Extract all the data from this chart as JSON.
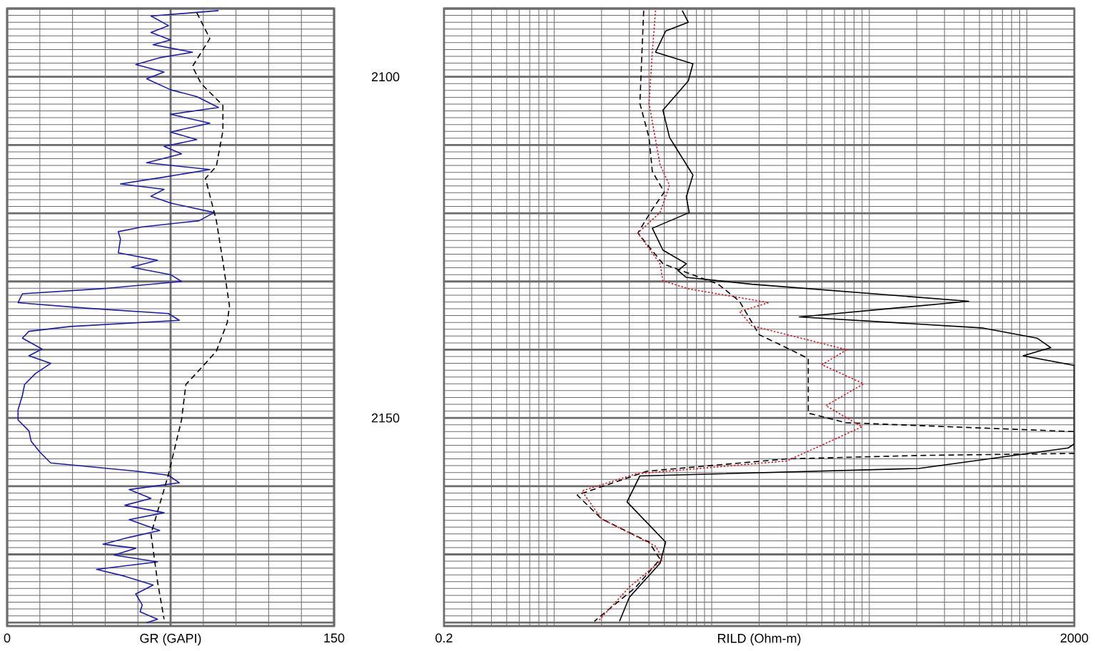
{
  "chart_data": [
    {
      "type": "line",
      "xlabel": "GR (GAPI)",
      "xlim": [
        0,
        150
      ],
      "xticks": [
        0,
        {
          "value": 75,
          "label": null
        },
        150
      ],
      "ylim": [
        2180.5,
        2090
      ],
      "yticks": [
        {
          "value": 2090,
          "label": null
        },
        2100,
        {
          "value": 2110,
          "label": null
        },
        {
          "value": 2120,
          "label": null
        },
        {
          "value": 2130,
          "label": null
        },
        {
          "value": 2140,
          "label": null
        },
        2150,
        {
          "value": 2160,
          "label": null
        },
        {
          "value": 2170,
          "label": null
        },
        {
          "value": 2180,
          "label": null
        }
      ],
      "grid": true,
      "series": [
        {
          "color": "#1c1cb4",
          "x": [
            97,
            66,
            74,
            66,
            75,
            67,
            85,
            70,
            59,
            72,
            64,
            75,
            87,
            97,
            75,
            93,
            75,
            87,
            72,
            80,
            64,
            93,
            72,
            52,
            72,
            66,
            75,
            95,
            88,
            62,
            51,
            52,
            51,
            69,
            57,
            75,
            80,
            46,
            7,
            5,
            36,
            74,
            79,
            29,
            10,
            7,
            16,
            10,
            20,
            13,
            8,
            7,
            5,
            5,
            10,
            11,
            15,
            20,
            59,
            74,
            79,
            56,
            66,
            54,
            72,
            56,
            70,
            56,
            44,
            59,
            49,
            69,
            41,
            54,
            67,
            59,
            62,
            61,
            69,
            64
          ],
          "values": [
            2090.3,
            2091.1,
            2092.5,
            2093.5,
            2094.6,
            2095.3,
            2096.4,
            2097.2,
            2098.2,
            2099.3,
            2100.3,
            2101.9,
            2102.9,
            2104.5,
            2105.5,
            2106.8,
            2108.1,
            2109.2,
            2110.2,
            2111.3,
            2112.6,
            2113.6,
            2114.7,
            2115.7,
            2116.5,
            2117.5,
            2118.5,
            2119.9,
            2121.1,
            2122.0,
            2122.7,
            2123.8,
            2125.8,
            2126.9,
            2127.9,
            2129.0,
            2130.0,
            2131.0,
            2131.8,
            2133.1,
            2133.9,
            2134.7,
            2135.7,
            2136.6,
            2137.3,
            2138.3,
            2139.9,
            2140.9,
            2142.0,
            2143.5,
            2145.1,
            2146.7,
            2148.8,
            2150.3,
            2151.9,
            2153.4,
            2155.0,
            2156.6,
            2157.8,
            2158.4,
            2159.5,
            2160.5,
            2161.8,
            2162.8,
            2163.9,
            2164.9,
            2166.5,
            2167.5,
            2168.5,
            2169.1,
            2170.1,
            2171.1,
            2172.2,
            2173.2,
            2174.5,
            2175.8,
            2177.4,
            2178.4,
            2179.5,
            2180.0
          ]
        },
        {
          "color": "#000000",
          "line_style": "dashed",
          "x": [
            87,
            93,
            85,
            89,
            99,
            99,
            96,
            91,
            96,
            99,
            102,
            101,
            96,
            89,
            82,
            80,
            74,
            66,
            69,
            72
          ],
          "values": [
            2090.6,
            2094.4,
            2098.5,
            2101.0,
            2104.2,
            2107.9,
            2113.1,
            2114.9,
            2121.1,
            2127.1,
            2133.6,
            2136.0,
            2140.2,
            2142.7,
            2145.1,
            2150.3,
            2158.3,
            2167.0,
            2174.0,
            2179.5
          ]
        }
      ]
    },
    {
      "type": "line",
      "xlabel": "RILD (Ohm-m)",
      "log": "x",
      "xlim": [
        0.2,
        2000
      ],
      "xticks": [
        0.2,
        {
          "value": 2,
          "label": null
        },
        {
          "value": 20,
          "label": null
        },
        {
          "value": 200,
          "label": null
        },
        2000
      ],
      "ylim": [
        2180.5,
        2090
      ],
      "yticks": [
        {
          "value": 2090,
          "label": null
        },
        {
          "value": 2100,
          "label": null
        },
        {
          "value": 2110,
          "label": null
        },
        {
          "value": 2120,
          "label": null
        },
        {
          "value": 2130,
          "label": null
        },
        {
          "value": 2140,
          "label": null
        },
        {
          "value": 2150,
          "label": null
        },
        {
          "value": 2160,
          "label": null
        },
        {
          "value": 2170,
          "label": null
        },
        {
          "value": 2180,
          "label": null
        }
      ],
      "tick_labels": "x",
      "grid": true,
      "series": [
        {
          "color": "#000000",
          "x": [
            6.5,
            7.1,
            5.1,
            4.4,
            7.6,
            7.1,
            4.9,
            5.4,
            7.6,
            6.9,
            7.2,
            4.2,
            4.9,
            6.9,
            6.1,
            6.9,
            18,
            427,
            36,
            517,
            1159,
            1419,
            946,
            2000,
            2000,
            1828,
            206,
            3.5,
            2.9,
            5.1,
            4.7,
            3.0,
            2.6
          ],
          "values": [
            2090.3,
            2092.0,
            2093.3,
            2096.4,
            2098.1,
            2100.6,
            2104.9,
            2108.9,
            2114.4,
            2117.6,
            2119.9,
            2122.2,
            2125.4,
            2127.4,
            2128.4,
            2129.4,
            2130.4,
            2132.9,
            2135.2,
            2136.8,
            2138.3,
            2139.7,
            2140.9,
            2142.3,
            2153.8,
            2154.4,
            2157.4,
            2158.5,
            2162.3,
            2168.2,
            2171.3,
            2176.3,
            2179.8
          ]
        },
        {
          "color": "#000000",
          "line_style": "dashed",
          "x": [
            3.7,
            3.5,
            4.0,
            4.2,
            5.0,
            4.2,
            3.4,
            4.9,
            11,
            15,
            20,
            31,
            41,
            41,
            71,
            2000,
            2000,
            206,
            30,
            3.9,
            1.4,
            2.0,
            4.0,
            4.7,
            3.3,
            1.8
          ],
          "values": [
            2090.3,
            2103.9,
            2108.9,
            2113.9,
            2116.9,
            2119.4,
            2122.9,
            2127.4,
            2130.4,
            2132.9,
            2137.8,
            2139.9,
            2141.3,
            2149.3,
            2150.7,
            2152.0,
            2155.2,
            2155.5,
            2156.0,
            2157.8,
            2161.3,
            2164.8,
            2168.2,
            2170.7,
            2174.8,
            2179.8
          ]
        },
        {
          "color": "#e0141e",
          "line_style": "dotted",
          "x": [
            4.4,
            4.2,
            4.0,
            4.7,
            5.4,
            4.7,
            3.4,
            4.7,
            4.9,
            7.2,
            23,
            15,
            18,
            72,
            50,
            92,
            53,
            90,
            30,
            3.3,
            1.5,
            2.0,
            4.4,
            4.9,
            3.0,
            1.9
          ],
          "values": [
            2090.3,
            2096.4,
            2103.9,
            2112.9,
            2115.9,
            2119.9,
            2122.9,
            2127.4,
            2129.9,
            2131.1,
            2133.1,
            2134.4,
            2136.5,
            2140.0,
            2142.2,
            2145.0,
            2148.2,
            2151.3,
            2156.3,
            2158.2,
            2160.7,
            2164.8,
            2168.8,
            2170.7,
            2174.8,
            2179.8
          ]
        }
      ]
    }
  ]
}
